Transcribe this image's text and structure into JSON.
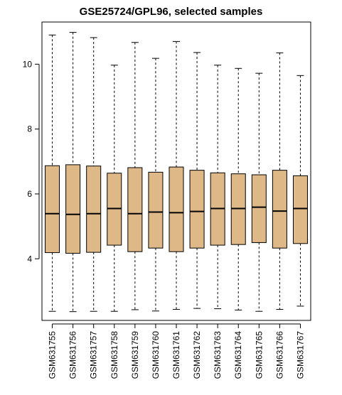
{
  "chart_data": {
    "type": "boxplot",
    "title": "GSE25724/GPL96, selected samples",
    "xlabel": "",
    "ylabel": "",
    "ylim": [
      2.1,
      11.3
    ],
    "yticks": [
      4,
      6,
      8,
      10
    ],
    "grid": false,
    "box_fill": "#deb887",
    "categories": [
      "GSM631755",
      "GSM631756",
      "GSM631757",
      "GSM631758",
      "GSM631759",
      "GSM631760",
      "GSM631761",
      "GSM631762",
      "GSM631763",
      "GSM631764",
      "GSM631765",
      "GSM631766",
      "GSM631767"
    ],
    "series": [
      {
        "min": 2.38,
        "q1": 4.19,
        "median": 5.39,
        "q3": 6.87,
        "max": 10.9
      },
      {
        "min": 2.37,
        "q1": 4.17,
        "median": 5.37,
        "q3": 6.9,
        "max": 10.98
      },
      {
        "min": 2.38,
        "q1": 4.2,
        "median": 5.39,
        "q3": 6.86,
        "max": 10.82
      },
      {
        "min": 2.38,
        "q1": 4.42,
        "median": 5.55,
        "q3": 6.64,
        "max": 9.97
      },
      {
        "min": 2.43,
        "q1": 4.22,
        "median": 5.39,
        "q3": 6.81,
        "max": 10.67
      },
      {
        "min": 2.39,
        "q1": 4.33,
        "median": 5.44,
        "q3": 6.67,
        "max": 10.18
      },
      {
        "min": 2.44,
        "q1": 4.22,
        "median": 5.42,
        "q3": 6.83,
        "max": 10.7
      },
      {
        "min": 2.47,
        "q1": 4.33,
        "median": 5.46,
        "q3": 6.73,
        "max": 10.36
      },
      {
        "min": 2.46,
        "q1": 4.42,
        "median": 5.55,
        "q3": 6.65,
        "max": 9.97
      },
      {
        "min": 2.42,
        "q1": 4.44,
        "median": 5.55,
        "q3": 6.62,
        "max": 9.87
      },
      {
        "min": 2.38,
        "q1": 4.5,
        "median": 5.59,
        "q3": 6.59,
        "max": 9.72
      },
      {
        "min": 2.44,
        "q1": 4.33,
        "median": 5.47,
        "q3": 6.73,
        "max": 10.35
      },
      {
        "min": 2.54,
        "q1": 4.47,
        "median": 5.55,
        "q3": 6.56,
        "max": 9.65
      }
    ]
  }
}
